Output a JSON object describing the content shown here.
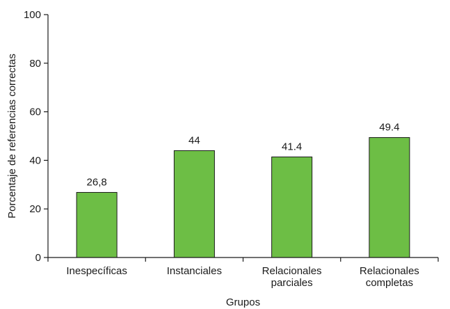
{
  "chart_data": {
    "type": "bar",
    "categories": [
      [
        "Inespecíficas"
      ],
      [
        "Instanciales"
      ],
      [
        "Relacionales",
        "parciales"
      ],
      [
        "Relacionales",
        "completas"
      ]
    ],
    "values": [
      26.8,
      44,
      41.4,
      49.4
    ],
    "data_labels": [
      "26,8",
      "44",
      "41.4",
      "49.4"
    ],
    "title": "",
    "xlabel": "Grupos",
    "ylabel": "Porcentaje de referencias correctas",
    "ylim": [
      0,
      100
    ],
    "yticks": [
      0,
      20,
      40,
      60,
      80,
      100
    ],
    "grid": false,
    "legend": "none",
    "bar_color": "#6dbe45",
    "bar_stroke": "#1a1a1a",
    "axis_color": "#1a1a1a"
  }
}
